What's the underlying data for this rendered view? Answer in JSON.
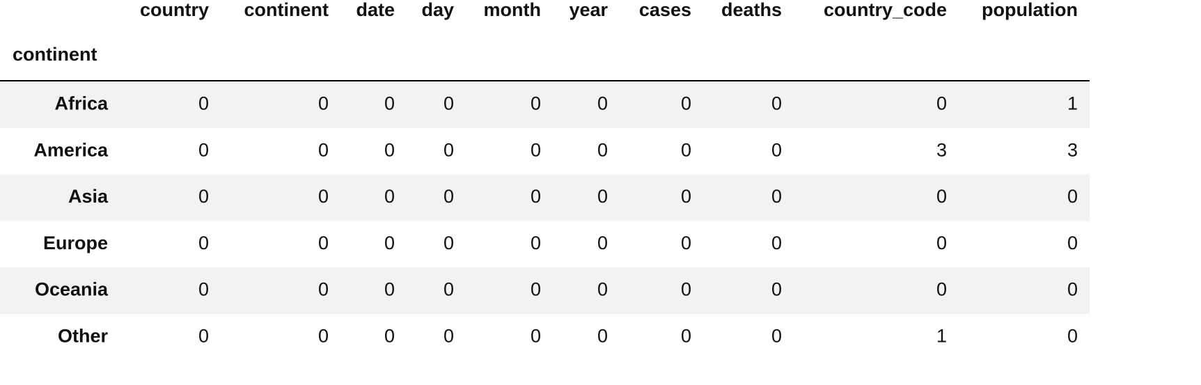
{
  "table": {
    "columns": [
      "country",
      "continent",
      "date",
      "day",
      "month",
      "year",
      "cases",
      "deaths",
      "country_code",
      "population"
    ],
    "index_name": "continent",
    "rows": [
      {
        "index": "Africa",
        "values": [
          0,
          0,
          0,
          0,
          0,
          0,
          0,
          0,
          0,
          1
        ]
      },
      {
        "index": "America",
        "values": [
          0,
          0,
          0,
          0,
          0,
          0,
          0,
          0,
          3,
          3
        ]
      },
      {
        "index": "Asia",
        "values": [
          0,
          0,
          0,
          0,
          0,
          0,
          0,
          0,
          0,
          0
        ]
      },
      {
        "index": "Europe",
        "values": [
          0,
          0,
          0,
          0,
          0,
          0,
          0,
          0,
          0,
          0
        ]
      },
      {
        "index": "Oceania",
        "values": [
          0,
          0,
          0,
          0,
          0,
          0,
          0,
          0,
          0,
          0
        ]
      },
      {
        "index": "Other",
        "values": [
          0,
          0,
          0,
          0,
          0,
          0,
          0,
          0,
          1,
          0
        ]
      }
    ]
  }
}
